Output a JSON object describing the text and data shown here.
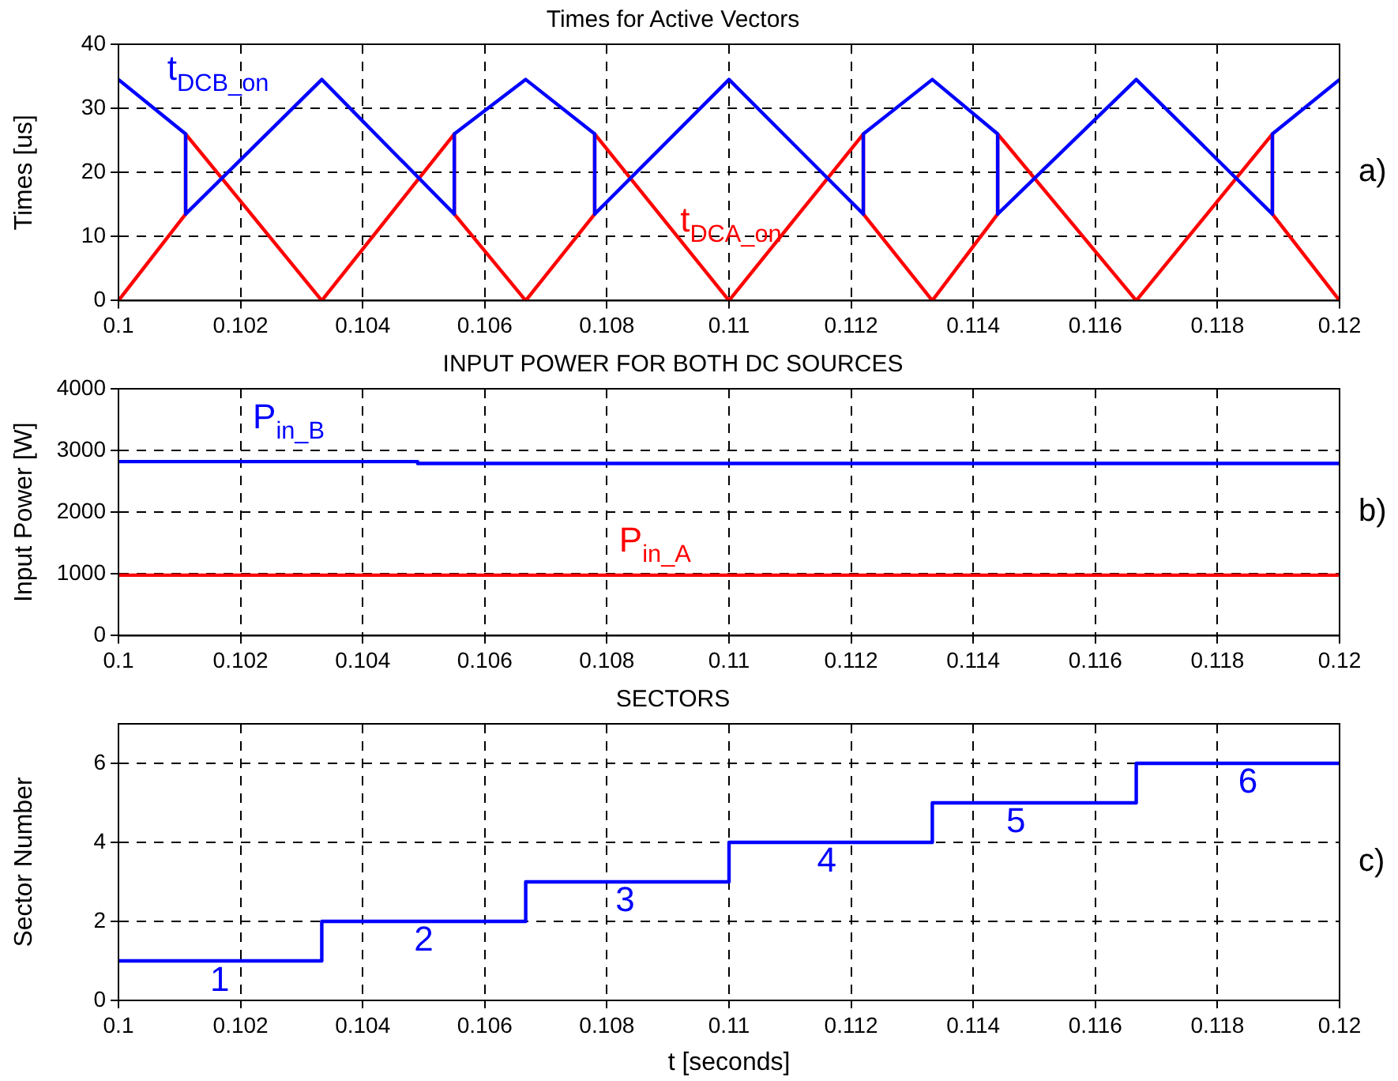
{
  "chart_data": [
    {
      "type": "line",
      "title": "Times for Active Vectors",
      "ylabel": "Times [us]",
      "xlim": [
        0.1,
        0.12
      ],
      "xticks": [
        0.1,
        0.102,
        0.104,
        0.106,
        0.108,
        0.11,
        0.112,
        0.114,
        0.116,
        0.118,
        0.12
      ],
      "ylim": [
        0,
        40
      ],
      "yticks": [
        0,
        10,
        20,
        30,
        40
      ],
      "grid": true,
      "legend": false,
      "annotations": [
        "a)"
      ],
      "series": [
        {
          "name": "t$_{DCB_on}$",
          "color": "#0000ff",
          "x": [
            0.1,
            0.1011,
            0.1011,
            0.10333,
            0.1055,
            0.1055,
            0.10667,
            0.1078,
            0.1078,
            0.11,
            0.1122,
            0.1122,
            0.11333,
            0.1144,
            0.1144,
            0.11667,
            0.1189,
            0.1189,
            0.12
          ],
          "values": [
            34.5,
            26,
            13.5,
            34.5,
            13.5,
            26,
            34.5,
            26,
            13.5,
            34.5,
            13.5,
            26,
            34.5,
            26,
            13.5,
            34.5,
            13.5,
            26,
            34.5
          ]
        },
        {
          "name": "t$_{DCA_on}$",
          "color": "#ff0000",
          "x": [
            0.1,
            0.1011,
            0.1011,
            0.10333,
            0.1055,
            0.1055,
            0.10667,
            0.1078,
            0.1078,
            0.11,
            0.1122,
            0.1122,
            0.11333,
            0.1144,
            0.1144,
            0.11667,
            0.1189,
            0.1189,
            0.12
          ],
          "values": [
            0,
            13.5,
            26,
            0,
            26,
            13.5,
            0,
            13.5,
            26,
            0,
            26,
            13.5,
            0,
            13.5,
            26,
            0,
            26,
            13.5,
            0
          ]
        }
      ]
    },
    {
      "type": "line",
      "title": "INPUT POWER FOR BOTH DC SOURCES",
      "ylabel": "Input Power [W]",
      "xlim": [
        0.1,
        0.12
      ],
      "xticks": [
        0.1,
        0.102,
        0.104,
        0.106,
        0.108,
        0.11,
        0.112,
        0.114,
        0.116,
        0.118,
        0.12
      ],
      "ylim": [
        0,
        4000
      ],
      "yticks": [
        0,
        1000,
        2000,
        3000,
        4000
      ],
      "grid": true,
      "legend": false,
      "annotations": [
        "b)"
      ],
      "series": [
        {
          "name": "P$_{in_B}$",
          "color": "#0000ff",
          "x": [
            0.1,
            0.1049,
            0.1049,
            0.12
          ],
          "values": [
            2820,
            2820,
            2790,
            2790
          ]
        },
        {
          "name": "P$_{in_A}$",
          "color": "#ff0000",
          "x": [
            0.1,
            0.12
          ],
          "values": [
            980,
            980
          ]
        }
      ]
    },
    {
      "type": "step",
      "title": "SECTORS",
      "xlabel": "t [seconds]",
      "ylabel": "Sector Number",
      "xlim": [
        0.1,
        0.12
      ],
      "xticks": [
        0.1,
        0.102,
        0.104,
        0.106,
        0.108,
        0.11,
        0.112,
        0.114,
        0.116,
        0.118,
        0.12
      ],
      "ylim": [
        0,
        7
      ],
      "yticks": [
        0,
        2,
        4,
        6
      ],
      "grid": true,
      "legend": false,
      "annotations": [
        "1",
        "2",
        "3",
        "4",
        "5",
        "6",
        "c)"
      ],
      "series": [
        {
          "color": "#0000ff",
          "x": [
            0.1,
            0.10333,
            0.10667,
            0.11,
            0.11333,
            0.11667,
            0.12
          ],
          "values": [
            1,
            2,
            3,
            4,
            5,
            6,
            6
          ]
        }
      ]
    }
  ]
}
